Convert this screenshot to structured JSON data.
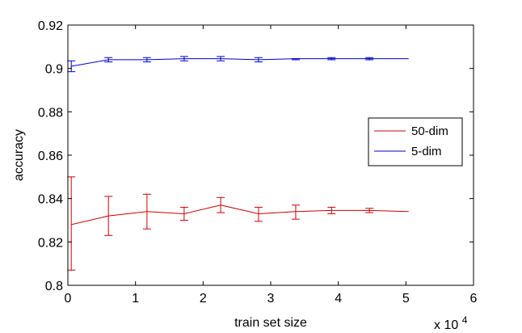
{
  "chart_data": {
    "type": "line",
    "xlabel": "train set size",
    "ylabel": "accuracy",
    "x_multiplier_label": "x 10",
    "x_multiplier_exponent": "4",
    "xlim": [
      0,
      60000
    ],
    "ylim": [
      0.8,
      0.92
    ],
    "xticks": [
      0,
      10000,
      20000,
      30000,
      40000,
      50000,
      60000
    ],
    "xtick_labels": [
      "0",
      "1",
      "2",
      "3",
      "4",
      "5",
      "6"
    ],
    "yticks": [
      0.8,
      0.82,
      0.84,
      0.86,
      0.88,
      0.9,
      0.92
    ],
    "ytick_labels": [
      "0.8",
      "0.82",
      "0.84",
      "0.86",
      "0.88",
      "0.9",
      "0.92"
    ],
    "grid": false,
    "legend_position": "right",
    "series": [
      {
        "name": "50-dim",
        "color": "#cc0000",
        "x": [
          500,
          6000,
          11700,
          17200,
          22600,
          28200,
          33700,
          39000,
          44600,
          50400
        ],
        "y": [
          0.828,
          0.832,
          0.834,
          0.833,
          0.837,
          0.833,
          0.834,
          0.8345,
          0.8345,
          0.834
        ],
        "err_low": [
          0.807,
          0.823,
          0.826,
          0.83,
          0.8335,
          0.8295,
          0.8305,
          0.833,
          0.8335,
          null
        ],
        "err_high": [
          0.85,
          0.841,
          0.842,
          0.836,
          0.8405,
          0.836,
          0.837,
          0.836,
          0.8355,
          null
        ]
      },
      {
        "name": "5-dim",
        "color": "#0000cc",
        "x": [
          500,
          6000,
          11700,
          17200,
          22600,
          28200,
          33700,
          39000,
          44600,
          50400
        ],
        "y": [
          0.901,
          0.904,
          0.904,
          0.9045,
          0.9045,
          0.904,
          0.9045,
          0.9045,
          0.9045,
          0.9045
        ],
        "err_low": [
          0.8985,
          0.903,
          0.903,
          0.9035,
          0.9035,
          0.903,
          0.904,
          0.904,
          0.904,
          null
        ],
        "err_high": [
          0.9035,
          0.905,
          0.905,
          0.9055,
          0.9055,
          0.905,
          0.9045,
          0.905,
          0.905,
          null
        ]
      }
    ]
  }
}
